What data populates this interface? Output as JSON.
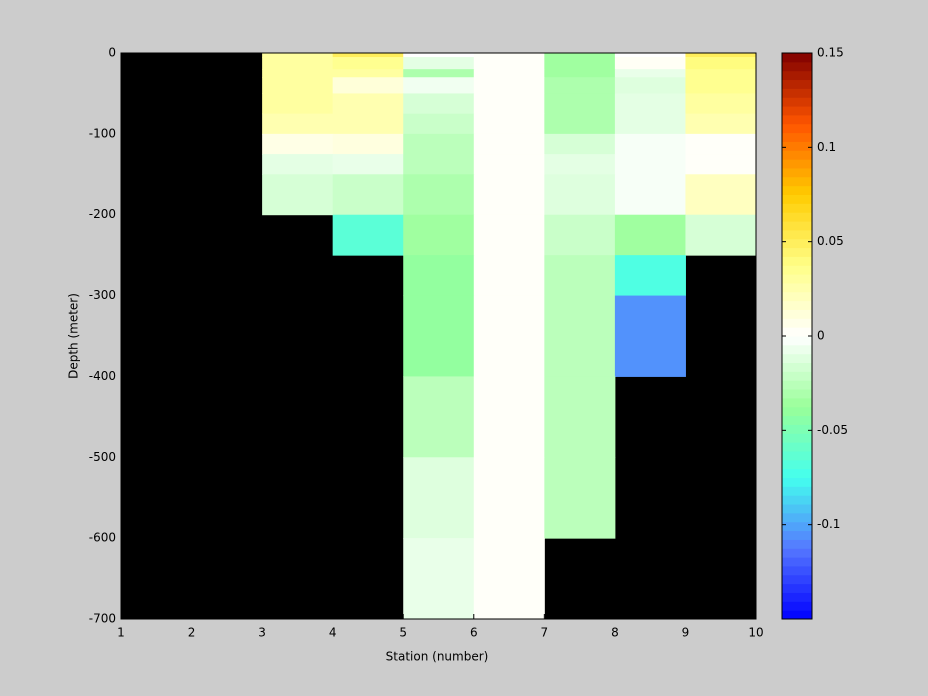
{
  "chart_data": {
    "type": "heatmap",
    "xlabel": "Station (number)",
    "ylabel": "Depth (meter)",
    "x": [
      1,
      2,
      3,
      4,
      5,
      6,
      7,
      8,
      9,
      10
    ],
    "y": [
      0,
      -5,
      -20,
      -30,
      -50,
      -75,
      -100,
      -125,
      -150,
      -200,
      -250,
      -300,
      -400,
      -500,
      -600,
      -700
    ],
    "values": [
      [
        null,
        null,
        0.03,
        0.05,
        0,
        0.002,
        -0.035,
        0,
        0.05
      ],
      [
        null,
        null,
        0.03,
        0.035,
        -0.01,
        0.002,
        -0.035,
        0.003,
        0.04
      ],
      [
        null,
        null,
        0.03,
        0.03,
        -0.03,
        0.002,
        -0.035,
        -0.008,
        0.035
      ],
      [
        null,
        null,
        0.03,
        0.012,
        -0.005,
        0.002,
        -0.03,
        -0.012,
        0.035
      ],
      [
        null,
        null,
        0.03,
        0.025,
        -0.015,
        0.002,
        -0.03,
        -0.01,
        0.03
      ],
      [
        null,
        null,
        0.025,
        0.025,
        -0.02,
        0.002,
        -0.03,
        -0.01,
        0.025
      ],
      [
        null,
        null,
        0.008,
        0.01,
        -0.025,
        0.002,
        -0.015,
        -0.003,
        0.002
      ],
      [
        null,
        null,
        -0.01,
        -0.008,
        -0.025,
        0.002,
        -0.01,
        -0.003,
        0.002
      ],
      [
        null,
        null,
        -0.015,
        -0.02,
        -0.03,
        0.002,
        -0.012,
        -0.003,
        0.02
      ],
      [
        null,
        null,
        null,
        -0.065,
        -0.035,
        0.002,
        -0.02,
        -0.035,
        -0.015
      ],
      [
        null,
        null,
        null,
        null,
        -0.04,
        0.002,
        -0.025,
        -0.07,
        null
      ],
      [
        null,
        null,
        null,
        null,
        -0.04,
        0.002,
        -0.025,
        -0.105,
        null
      ],
      [
        null,
        null,
        null,
        null,
        -0.025,
        0.002,
        -0.025,
        null,
        null
      ],
      [
        null,
        null,
        null,
        null,
        -0.012,
        0.002,
        -0.025,
        null,
        null
      ],
      [
        null,
        null,
        null,
        null,
        -0.008,
        0.002,
        null,
        null,
        null
      ]
    ],
    "xlim": [
      1,
      10
    ],
    "xticks": [
      1,
      2,
      3,
      4,
      5,
      6,
      7,
      8,
      9,
      10
    ],
    "ylim": [
      -700,
      0
    ],
    "yticks": [
      0,
      -100,
      -200,
      -300,
      -400,
      -500,
      -600,
      -700
    ],
    "clim": [
      -0.15,
      0.15
    ],
    "cticks": [
      0.15,
      0.1,
      0.05,
      0,
      -0.05,
      -0.1
    ],
    "colormap": [
      "#0000ff",
      "#5577ff",
      "#44ffee",
      "#99ff99",
      "#ffffff",
      "#ffff88",
      "#ffcc00",
      "#ff5500",
      "#800000"
    ],
    "missing_color": "#000000"
  }
}
